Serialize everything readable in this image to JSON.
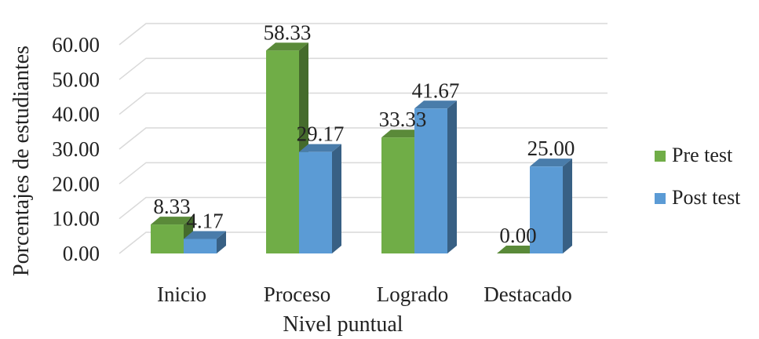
{
  "chart_data": {
    "type": "bar",
    "categories": [
      "Inicio",
      "Proceso",
      "Logrado",
      "Destacado"
    ],
    "series": [
      {
        "name": "Pre test",
        "values": [
          8.33,
          58.33,
          33.33,
          0.0
        ],
        "color": "#70AD47",
        "labels": [
          "8.33",
          "58.33",
          "33.33",
          "0.00"
        ]
      },
      {
        "name": "Post test",
        "values": [
          4.17,
          29.17,
          41.67,
          25.0
        ],
        "color": "#5B9BD5",
        "labels": [
          "4.17",
          "29.17",
          "41.67",
          "25.00"
        ]
      }
    ],
    "yticks": [
      "0.00",
      "10.00",
      "20.00",
      "30.00",
      "40.00",
      "50.00",
      "60.00"
    ],
    "ylim": [
      0,
      60
    ],
    "xlabel": "Nivel puntual",
    "ylabel": "Porcentajes de estudiantes",
    "legend_position": "right",
    "grid": true,
    "style": "3d-clustered-column"
  }
}
